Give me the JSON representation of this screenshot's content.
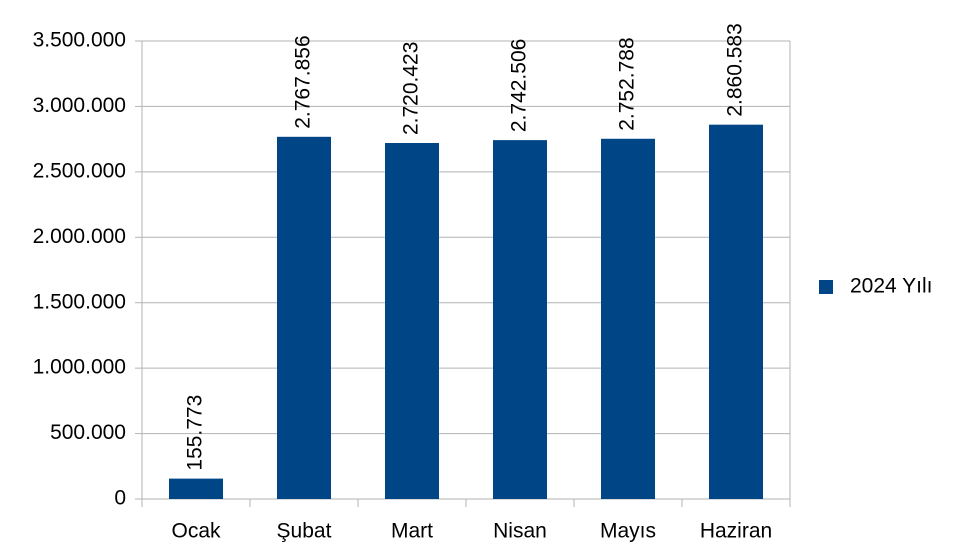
{
  "chart_data": {
    "type": "bar",
    "categories": [
      "Ocak",
      "Şubat",
      "Mart",
      "Nisan",
      "Mayıs",
      "Haziran"
    ],
    "series": [
      {
        "name": "2024 Yılı",
        "color": "#004586",
        "values": [
          155773,
          2767856,
          2720423,
          2742506,
          2752788,
          2860583
        ],
        "value_labels": [
          "155.773",
          "2.767.856",
          "2.720.423",
          "2.742.506",
          "2.752.788",
          "2.860.583"
        ]
      }
    ],
    "ylim": [
      0,
      3500000
    ],
    "yticks": [
      0,
      {
        "value": 500000,
        "label": "500.000"
      },
      {
        "value": 1000000,
        "label": "1.000.000"
      },
      {
        "value": 1500000,
        "label": "1.500.000"
      },
      {
        "value": 2000000,
        "label": "2.000.000"
      },
      {
        "value": 2500000,
        "label": "2.500.000"
      },
      {
        "value": 3000000,
        "label": "3.000.000"
      },
      {
        "value": 3500000,
        "label": "3.500.000"
      }
    ],
    "grid": true,
    "legend": "right"
  }
}
